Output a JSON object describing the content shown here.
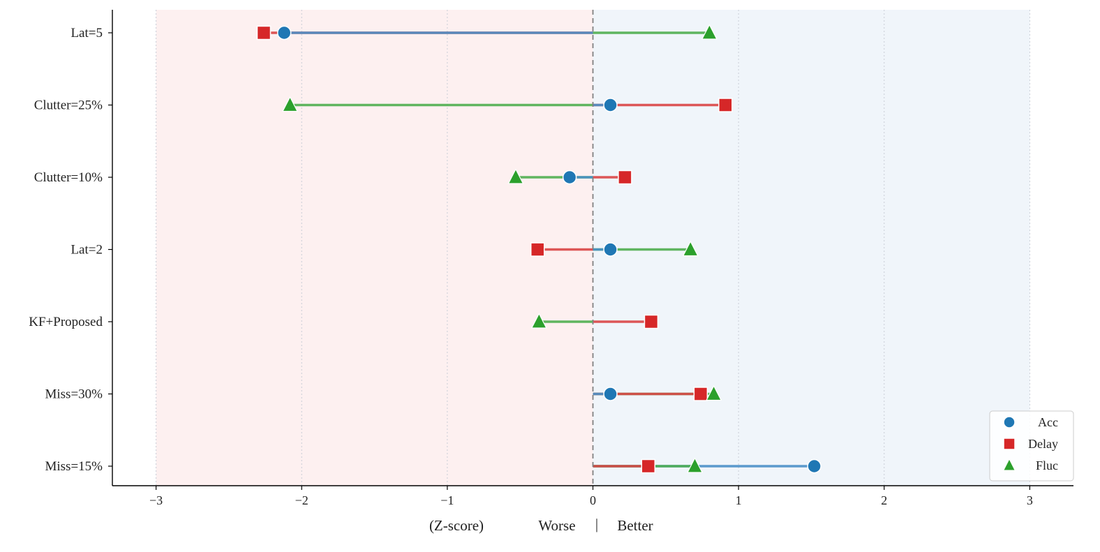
{
  "chart_data": {
    "type": "lollipop",
    "title": "",
    "xlabel": "(Z-score)",
    "xlabel_worse": "Worse",
    "xlabel_sep": "|",
    "xlabel_better": "Better",
    "xlim": [
      -3.3,
      3.3
    ],
    "xticks": [
      -3,
      -2,
      -1,
      0,
      1,
      2,
      3
    ],
    "xtick_labels": [
      "−3",
      "−2",
      "−1",
      "0",
      "1",
      "2",
      "3"
    ],
    "grid": "vertical dotted",
    "shaded_regions": [
      {
        "from": -3,
        "to": 0,
        "meaning": "Worse",
        "color": "#fdf0f0"
      },
      {
        "from": 0,
        "to": 3,
        "meaning": "Better",
        "color": "#f0f5fa"
      }
    ],
    "categories": [
      "Lat=5",
      "Clutter=25%",
      "Clutter=10%",
      "Lat=2",
      "KF+Proposed",
      "Miss=30%",
      "Miss=15%"
    ],
    "series": [
      {
        "name": "Acc",
        "marker": "circle",
        "color": "#1f77b4",
        "line_color": "#4a90c8",
        "values": [
          -2.12,
          0.12,
          -0.16,
          0.12,
          null,
          0.12,
          1.52
        ]
      },
      {
        "name": "Delay",
        "marker": "square",
        "color": "#d62728",
        "line_color": "#d94545",
        "values": [
          -2.26,
          0.91,
          0.22,
          -0.38,
          0.4,
          0.74,
          0.38
        ]
      },
      {
        "name": "Fluc",
        "marker": "triangle",
        "color": "#2ca02c",
        "line_color": "#4fae4f",
        "values": [
          0.8,
          -2.08,
          -0.53,
          0.67,
          -0.37,
          0.83,
          0.7
        ]
      }
    ],
    "legend_placement": "lower-right"
  }
}
